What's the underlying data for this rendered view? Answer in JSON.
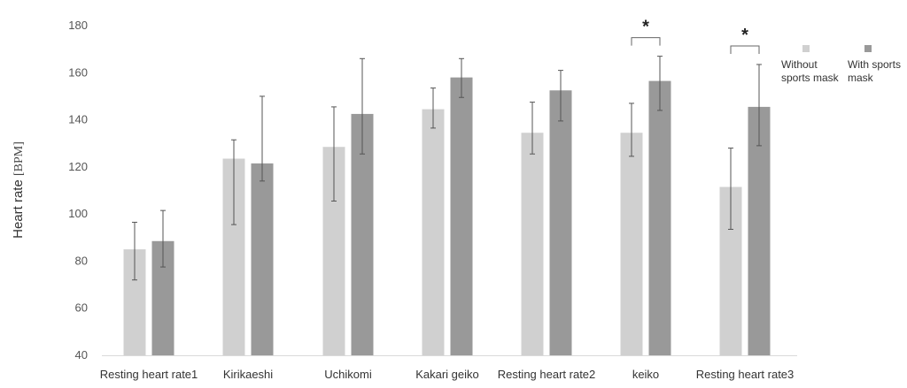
{
  "chart_data": {
    "type": "bar",
    "categories": [
      "Resting heart rate1",
      "Kirikaeshi",
      "Uchikomi",
      "Kakari geiko",
      "Resting heart rate2",
      "keiko",
      "Resting heart rate3"
    ],
    "series": [
      {
        "name": "Without sports mask",
        "color": "#d0d0d0",
        "values": [
          85,
          123.5,
          128.5,
          144.5,
          134.5,
          134.5,
          111.5
        ],
        "error_low": [
          72,
          95.5,
          105.5,
          136.5,
          125.5,
          124.5,
          93.5
        ],
        "error_high": [
          96.5,
          131.5,
          145.5,
          153.5,
          147.5,
          147,
          128
        ]
      },
      {
        "name": "With sports mask",
        "color": "#999999",
        "values": [
          88.5,
          121.5,
          142.5,
          158,
          152.5,
          156.5,
          145.5
        ],
        "error_low": [
          77.5,
          114,
          125.5,
          149.5,
          139.5,
          144,
          129
        ],
        "error_high": [
          101.5,
          150,
          166,
          166,
          161,
          167,
          163.5
        ]
      }
    ],
    "ylabel": "Heart rate",
    "ylabel_unit": "[BPM]",
    "ylim": [
      40,
      180
    ],
    "yticks": [
      40,
      60,
      80,
      100,
      120,
      140,
      160,
      180
    ],
    "grid": false,
    "legend": {
      "position": "right",
      "labels": [
        "Without\nsports mask",
        "With sports\nmask"
      ]
    },
    "significance": [
      {
        "category_index": 5,
        "marker": "*"
      },
      {
        "category_index": 6,
        "marker": "*"
      }
    ]
  }
}
